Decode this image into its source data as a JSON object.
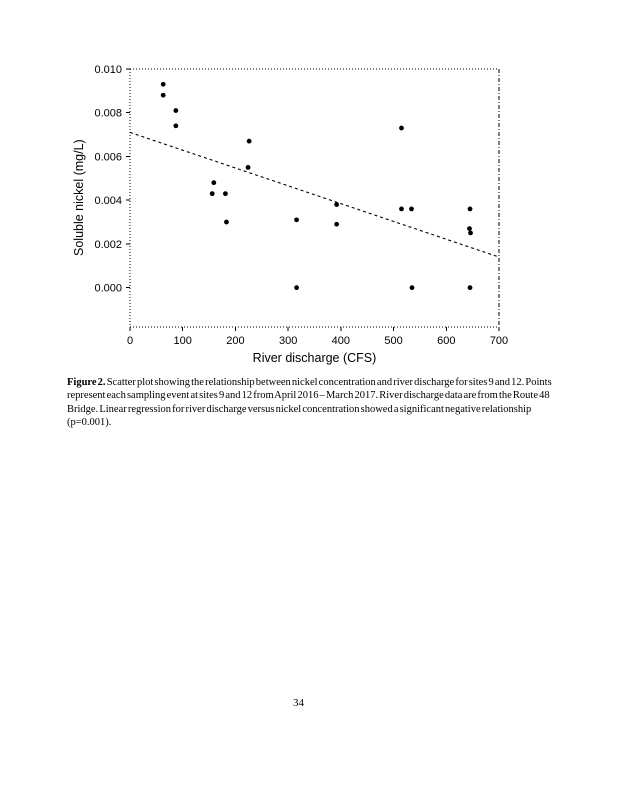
{
  "page": {
    "number": "34",
    "background": "#ffffff",
    "ink_color": "#000000"
  },
  "figure": {
    "caption_label": "Figure 2.",
    "caption_text": "Scatter plot showing the relationship between nickel concentration and river discharge for sites 9 and 12. Points represent each sampling event at sites 9 and 12 from April 2016 – March 2017. River discharge data are from the Route 48 Bridge. Linear regression for river discharge versus nickel concentration showed a significant negative relationship (p=0.001)."
  },
  "chart_data": {
    "type": "scatter",
    "title": "",
    "xlabel": "River discharge (CFS)",
    "ylabel": "Soluble nickel (mg/L)",
    "xlim": [
      0,
      700
    ],
    "ylim": [
      -0.0018,
      0.01
    ],
    "grid": false,
    "legend": "none",
    "frame_style": "dotted",
    "marker": "filled-circle",
    "marker_color": "#000000",
    "x_ticks": [
      {
        "value": 0,
        "label": "0"
      },
      {
        "value": 100,
        "label": "100"
      },
      {
        "value": 200,
        "label": "200"
      },
      {
        "value": 300,
        "label": "300"
      },
      {
        "value": 400,
        "label": "400"
      },
      {
        "value": 500,
        "label": "500"
      },
      {
        "value": 600,
        "label": "600"
      },
      {
        "value": 700,
        "label": "700"
      }
    ],
    "y_ticks": [
      {
        "value": 0.0,
        "label": "0.000"
      },
      {
        "value": 0.002,
        "label": "0.002"
      },
      {
        "value": 0.004,
        "label": "0.004"
      },
      {
        "value": 0.006,
        "label": "0.006"
      },
      {
        "value": 0.008,
        "label": "0.008"
      },
      {
        "value": 0.01,
        "label": "0.010"
      }
    ],
    "points": [
      [
        63,
        0.0093
      ],
      [
        63,
        0.0088
      ],
      [
        87,
        0.0081
      ],
      [
        87,
        0.0074
      ],
      [
        159,
        0.0048
      ],
      [
        156,
        0.0043
      ],
      [
        181,
        0.0043
      ],
      [
        183,
        0.003
      ],
      [
        226,
        0.0067
      ],
      [
        224,
        0.0055
      ],
      [
        316,
        0.0031
      ],
      [
        316,
        0.0
      ],
      [
        392,
        0.0038
      ],
      [
        392,
        0.0029
      ],
      [
        515,
        0.0073
      ],
      [
        515,
        0.0036
      ],
      [
        534,
        0.0036
      ],
      [
        535,
        0.0
      ],
      [
        645,
        0.0036
      ],
      [
        644,
        0.0027
      ],
      [
        646,
        0.0025
      ],
      [
        645,
        0.0
      ]
    ],
    "regression_line": {
      "style": "dashed",
      "x1": 0,
      "y1": 0.0071,
      "x2": 700,
      "y2": 0.0014,
      "p_value": "p=0.001"
    }
  }
}
